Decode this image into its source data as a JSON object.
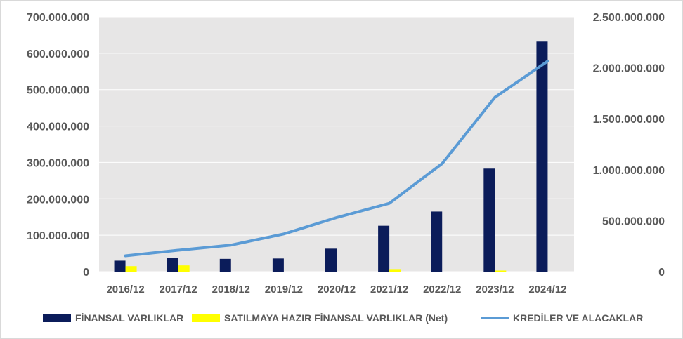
{
  "chart_data": {
    "type": "bar",
    "categories": [
      "2016/12",
      "2017/12",
      "2018/12",
      "2019/12",
      "2020/12",
      "2021/12",
      "2022/12",
      "2023/12",
      "2024/12"
    ],
    "series": [
      {
        "name": "FİNANSAL VARLIKLAR",
        "type": "bar",
        "axis": "left",
        "color": "#0b1c5a",
        "values": [
          30000000,
          37000000,
          35000000,
          36000000,
          63000000,
          126000000,
          165000000,
          283000000,
          632000000
        ]
      },
      {
        "name": "SATILMAYA HAZIR FİNANSAL VARLIKLAR (Net)",
        "type": "bar",
        "axis": "left",
        "color": "#ffff00",
        "values": [
          15000000,
          17000000,
          0,
          0,
          0,
          7000000,
          0,
          3000000,
          0
        ]
      },
      {
        "name": "KREDİLER VE ALACAKLAR",
        "type": "line",
        "axis": "right",
        "color": "#5b9bd5",
        "values": [
          155000000,
          210000000,
          260000000,
          370000000,
          530000000,
          670000000,
          1060000000,
          1710000000,
          2065000000
        ]
      }
    ],
    "y_left": {
      "min": 0,
      "max": 700000000,
      "ticks": [
        0,
        100000000,
        200000000,
        300000000,
        400000000,
        500000000,
        600000000,
        700000000
      ],
      "tick_labels": [
        "0",
        "100.000.000",
        "200.000.000",
        "300.000.000",
        "400.000.000",
        "500.000.000",
        "600.000.000",
        "700.000.000"
      ]
    },
    "y_right": {
      "min": 0,
      "max": 2500000000,
      "ticks": [
        0,
        500000000,
        1000000000,
        1500000000,
        2000000000,
        2500000000
      ],
      "tick_labels": [
        "0",
        "500.000.000",
        "1.000.000.000",
        "1.500.000.000",
        "2.000.000.000",
        "2.500.000.000"
      ]
    },
    "plot_background": "#e7e6e6",
    "grid": true,
    "legend_position": "bottom"
  }
}
